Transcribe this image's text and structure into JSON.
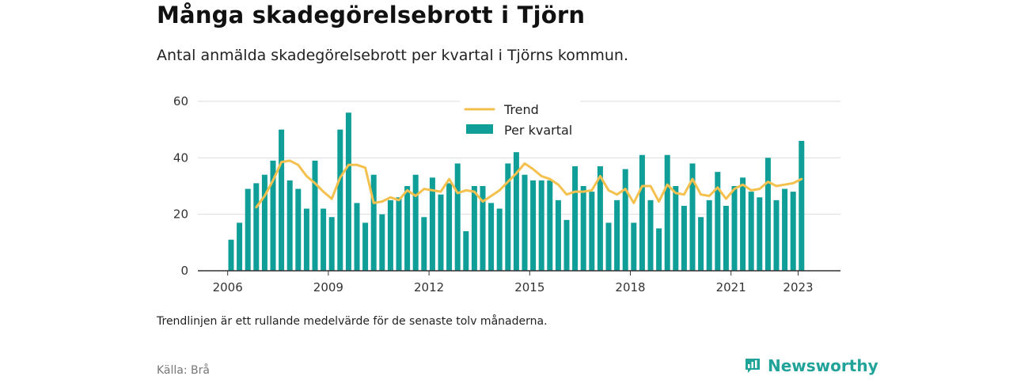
{
  "header": {
    "title": "Många skadegörelsebrott i Tjörn",
    "subtitle": "Antal anmälda skadegörelsebrott per kvartal i Tjörns kommun."
  },
  "footer": {
    "note": "Trendlinjen är ett rullande medelvärde för de senaste tolv månaderna.",
    "source": "Källa: Brå",
    "brand": "Newsworthy"
  },
  "colors": {
    "bar": "#0f9e98",
    "trend": "#f4c04e",
    "grid": "#dddddd",
    "axis": "#333333",
    "brand": "#22a39a"
  },
  "icons": {
    "brand_logo": "bar-chart-speech-bubble-icon"
  },
  "chart_data": {
    "type": "bar",
    "title": "",
    "xlabel": "",
    "ylabel": "",
    "ylim": [
      0,
      60
    ],
    "yticks": [
      "0",
      "20",
      "40",
      "60"
    ],
    "xticks": [
      "2006",
      "2009",
      "2012",
      "2015",
      "2018",
      "2021",
      "2023"
    ],
    "grid": true,
    "legend_position": "top",
    "legend": [
      "Trend",
      "Per kvartal"
    ],
    "x_start": "2006-Q1",
    "series": [
      {
        "name": "Per kvartal",
        "type": "bar",
        "values": [
          11,
          17,
          29,
          31,
          34,
          39,
          50,
          32,
          29,
          22,
          39,
          22,
          19,
          50,
          56,
          24,
          17,
          34,
          20,
          25,
          26,
          30,
          34,
          19,
          33,
          27,
          31,
          38,
          14,
          30,
          30,
          24,
          22,
          38,
          42,
          34,
          32,
          32,
          32,
          25,
          18,
          37,
          30,
          28,
          37,
          17,
          25,
          36,
          17,
          41,
          25,
          15,
          41,
          30,
          23,
          38,
          19,
          25,
          35,
          23,
          30,
          33,
          28,
          26,
          40,
          25,
          29,
          28,
          46
        ]
      },
      {
        "name": "Trend",
        "type": "line",
        "start_index": 3,
        "values": [
          22.5,
          26.5,
          32,
          38.5,
          39,
          37.5,
          33.5,
          31,
          28,
          25.5,
          33,
          37.5,
          37.5,
          36.5,
          24,
          24.5,
          26,
          25,
          28.5,
          26.5,
          29,
          28.5,
          28,
          32.5,
          27.5,
          28.5,
          28,
          24.5,
          26.5,
          28.5,
          31.5,
          34.5,
          38,
          36,
          33.5,
          32.5,
          30.5,
          27,
          28,
          28,
          28.5,
          33.5,
          28.5,
          27,
          29,
          24,
          30,
          30,
          24.5,
          30.5,
          27.5,
          27,
          32.5,
          27,
          26.5,
          29.5,
          25.5,
          29,
          30.5,
          28.5,
          29,
          31.5,
          30,
          30.5,
          31,
          32.5
        ]
      }
    ]
  }
}
